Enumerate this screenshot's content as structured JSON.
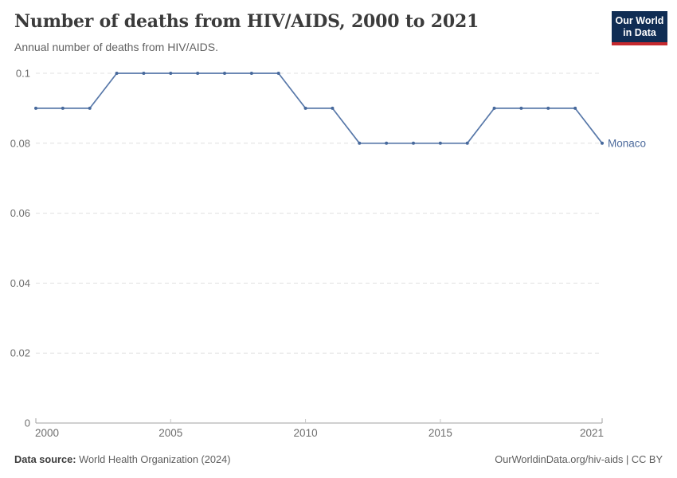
{
  "header": {
    "title": "Number of deaths from HIV/AIDS, 2000 to 2021",
    "subtitle": "Annual number of deaths from HIV/AIDS.",
    "logo_line1": "Our World",
    "logo_line2": "in Data"
  },
  "chart_data": {
    "type": "line",
    "title": "Number of deaths from HIV/AIDS, 2000 to 2021",
    "x": [
      2000,
      2001,
      2002,
      2003,
      2004,
      2005,
      2006,
      2007,
      2008,
      2009,
      2010,
      2011,
      2012,
      2013,
      2014,
      2015,
      2016,
      2017,
      2018,
      2019,
      2020,
      2021
    ],
    "series": [
      {
        "name": "Monaco",
        "values": [
          0.09,
          0.09,
          0.09,
          0.1,
          0.1,
          0.1,
          0.1,
          0.1,
          0.1,
          0.1,
          0.09,
          0.09,
          0.08,
          0.08,
          0.08,
          0.08,
          0.08,
          0.09,
          0.09,
          0.09,
          0.09,
          0.08
        ]
      }
    ],
    "xlim": [
      2000,
      2021
    ],
    "ylim": [
      0,
      0.1
    ],
    "x_ticks": [
      {
        "value": 2000,
        "label": "2000"
      },
      {
        "value": 2005,
        "label": "2005"
      },
      {
        "value": 2010,
        "label": "2010"
      },
      {
        "value": 2015,
        "label": "2015"
      },
      {
        "value": 2021,
        "label": "2021"
      }
    ],
    "y_ticks": [
      {
        "value": 0,
        "label": "0"
      },
      {
        "value": 0.02,
        "label": "0.02"
      },
      {
        "value": 0.04,
        "label": "0.04"
      },
      {
        "value": 0.06,
        "label": "0.06"
      },
      {
        "value": 0.08,
        "label": "0.08"
      },
      {
        "value": 0.1,
        "label": "0.1"
      }
    ],
    "grid": "horizontal-dashed",
    "legend_position": "end-of-line-label"
  },
  "footer": {
    "source_label": "Data source:",
    "source_value": "World Health Organization (2024)",
    "attribution": "OurWorldinData.org/hiv-aids | CC BY"
  },
  "colors": {
    "line": "#5878a9",
    "point": "#47699c",
    "series_label": "#4c6a9c",
    "grid": "#e0e0e0",
    "axis": "#a0a0a0",
    "minor_tick": "#c8c8c8",
    "tick_label": "#6e6e6e",
    "title": "#3b3b3b",
    "subtitle": "#616161",
    "logo_bg": "#102d54",
    "logo_red": "#c5292e"
  }
}
